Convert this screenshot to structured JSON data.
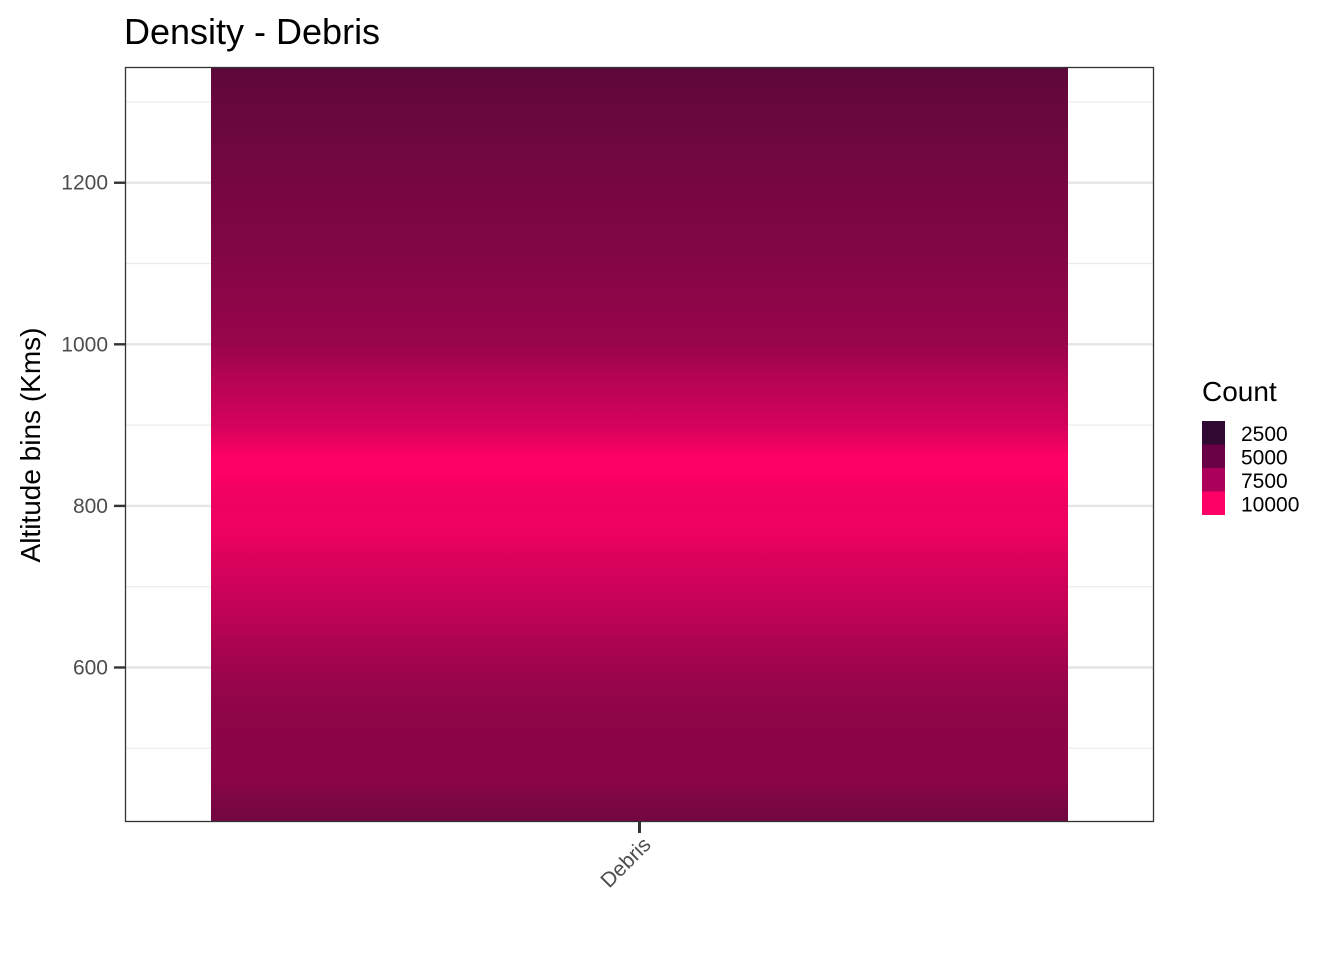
{
  "chart_data": {
    "type": "heatmap",
    "title": "Density - Debris",
    "xlabel": "",
    "ylabel": "Altitude bins (Kms)",
    "categories": [
      "Debris"
    ],
    "ylim": [
      410,
      1342
    ],
    "y_ticks": [
      600,
      800,
      1000,
      1200
    ],
    "grid": true,
    "legend": {
      "title": "Count",
      "position": "right",
      "breaks": [
        2500,
        5000,
        7500,
        10000
      ],
      "colors": [
        "#300a32",
        "#6a0045",
        "#ad005b",
        "#ff0066"
      ]
    },
    "series": [
      {
        "category": "Debris",
        "altitude": [
          420,
          460,
          500,
          540,
          580,
          620,
          660,
          700,
          740,
          760,
          780,
          800,
          820,
          840,
          860,
          880,
          900,
          920,
          940,
          960,
          980,
          1000,
          1040,
          1080,
          1120,
          1160,
          1200,
          1240,
          1280,
          1320,
          1342
        ],
        "count": [
          3600,
          4600,
          4700,
          4800,
          5200,
          6000,
          6900,
          7700,
          8500,
          9100,
          9300,
          9200,
          9400,
          10000,
          10000,
          9000,
          8000,
          7500,
          7000,
          6500,
          5900,
          5300,
          4900,
          4500,
          4200,
          3900,
          3700,
          3400,
          3100,
          2800,
          2500
        ]
      }
    ]
  }
}
